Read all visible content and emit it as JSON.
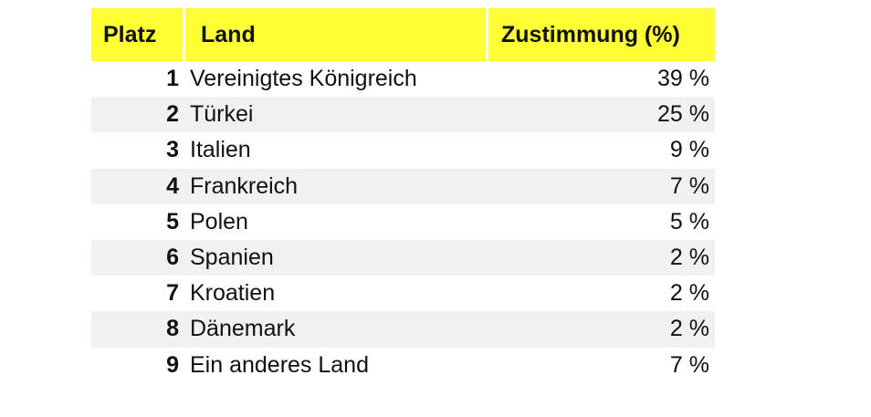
{
  "table": {
    "headers": {
      "rank": "Platz",
      "country": "Land",
      "approval": "Zustimmung (%)"
    },
    "rows": [
      {
        "rank": "1",
        "country": "Vereinigtes Königreich",
        "approval": "39 %"
      },
      {
        "rank": "2",
        "country": "Türkei",
        "approval": "25 %"
      },
      {
        "rank": "3",
        "country": "Italien",
        "approval": "9 %"
      },
      {
        "rank": "4",
        "country": "Frankreich",
        "approval": "7 %"
      },
      {
        "rank": "5",
        "country": "Polen",
        "approval": "5 %"
      },
      {
        "rank": "6",
        "country": "Spanien",
        "approval": "2 %"
      },
      {
        "rank": "7",
        "country": "Kroatien",
        "approval": "2 %"
      },
      {
        "rank": "8",
        "country": "Dänemark",
        "approval": "2 %"
      },
      {
        "rank": "9",
        "country": "Ein anderes Land",
        "approval": "7 %"
      }
    ],
    "colors": {
      "header_bg": "#ffff33",
      "stripe_bg": "#f1f1f1"
    }
  }
}
